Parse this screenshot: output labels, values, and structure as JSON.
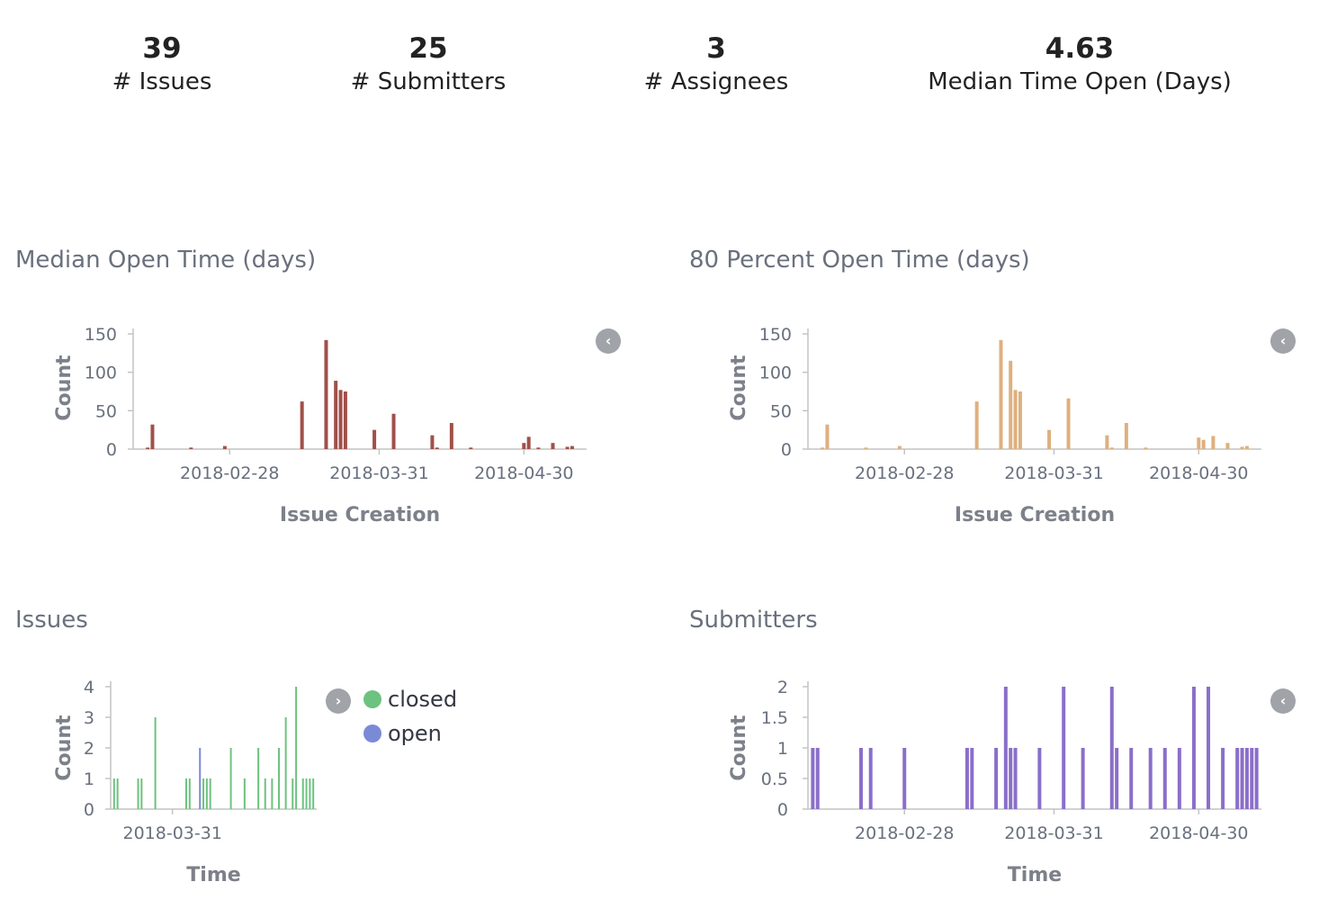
{
  "metrics": [
    {
      "value": "39",
      "label": "# Issues"
    },
    {
      "value": "25",
      "label": "# Submitters"
    },
    {
      "value": "3",
      "label": "# Assignees"
    },
    {
      "value": "4.63",
      "label": "Median Time Open (Days)"
    }
  ],
  "panels": {
    "median": {
      "title": "Median Open Time (days)"
    },
    "p80": {
      "title": "80 Percent Open Time (days)"
    },
    "issues": {
      "title": "Issues"
    },
    "submitters": {
      "title": "Submitters"
    }
  },
  "legend": {
    "issues": [
      {
        "label": "closed",
        "color": "#6dc27f"
      },
      {
        "label": "open",
        "color": "#7b8ad6"
      }
    ]
  },
  "colors": {
    "median": "#a0504a",
    "p80": "#deb07e",
    "closed": "#6dc27f",
    "open": "#7b8ad6",
    "submitters": "#8a6fc9"
  },
  "icons": {
    "legend_toggle": "chevron-left-icon",
    "legend_toggle_right": "chevron-right-icon"
  },
  "chart_data": [
    {
      "id": "median",
      "type": "bar",
      "title": "Median Open Time (days)",
      "xlabel": "Issue Creation",
      "ylabel": "Count",
      "xlim": [
        "2018-02-08",
        "2018-05-13"
      ],
      "ylim": [
        0,
        150
      ],
      "yticks": [
        0,
        50,
        100,
        150
      ],
      "xticks": [
        "2018-02-28",
        "2018-03-31",
        "2018-04-30"
      ],
      "x": [
        "2018-02-11",
        "2018-02-12",
        "2018-02-20",
        "2018-02-27",
        "2018-03-15",
        "2018-03-20",
        "2018-03-22",
        "2018-03-23",
        "2018-03-24",
        "2018-03-30",
        "2018-04-03",
        "2018-04-11",
        "2018-04-12",
        "2018-04-15",
        "2018-04-19",
        "2018-04-30",
        "2018-05-01",
        "2018-05-03",
        "2018-05-06",
        "2018-05-09",
        "2018-05-10"
      ],
      "values": [
        2,
        32,
        2,
        4,
        62,
        142,
        89,
        77,
        75,
        25,
        46,
        18,
        2,
        34,
        2,
        8,
        16,
        2,
        8,
        3,
        4
      ]
    },
    {
      "id": "p80",
      "type": "bar",
      "title": "80 Percent Open Time (days)",
      "xlabel": "Issue Creation",
      "ylabel": "Count",
      "xlim": [
        "2018-02-08",
        "2018-05-13"
      ],
      "ylim": [
        0,
        150
      ],
      "yticks": [
        0,
        50,
        100,
        150
      ],
      "xticks": [
        "2018-02-28",
        "2018-03-31",
        "2018-04-30"
      ],
      "x": [
        "2018-02-11",
        "2018-02-12",
        "2018-02-20",
        "2018-02-27",
        "2018-03-15",
        "2018-03-20",
        "2018-03-22",
        "2018-03-23",
        "2018-03-24",
        "2018-03-30",
        "2018-04-03",
        "2018-04-11",
        "2018-04-12",
        "2018-04-15",
        "2018-04-19",
        "2018-04-30",
        "2018-05-01",
        "2018-05-03",
        "2018-05-06",
        "2018-05-09",
        "2018-05-10"
      ],
      "values": [
        2,
        32,
        2,
        4,
        62,
        142,
        115,
        77,
        75,
        25,
        66,
        18,
        2,
        34,
        2,
        15,
        12,
        17,
        8,
        3,
        4
      ]
    },
    {
      "id": "issues",
      "type": "bar",
      "title": "Issues",
      "xlabel": "Time",
      "ylabel": "Count",
      "xlim": [
        "2018-03-13",
        "2018-05-12"
      ],
      "ylim": [
        0,
        4
      ],
      "yticks": [
        0,
        1,
        2,
        3,
        4
      ],
      "xticks": [
        "2018-03-31"
      ],
      "series": [
        {
          "name": "closed",
          "x": [
            "2018-03-14",
            "2018-03-15",
            "2018-03-21",
            "2018-03-22",
            "2018-03-26",
            "2018-04-04",
            "2018-04-05",
            "2018-04-09",
            "2018-04-10",
            "2018-04-11",
            "2018-04-17",
            "2018-04-21",
            "2018-04-25",
            "2018-04-27",
            "2018-04-29",
            "2018-05-01",
            "2018-05-03",
            "2018-05-05",
            "2018-05-06",
            "2018-05-08",
            "2018-05-09",
            "2018-05-10",
            "2018-05-11"
          ],
          "values": [
            1,
            1,
            1,
            1,
            3,
            1,
            1,
            1,
            1,
            1,
            2,
            1,
            2,
            1,
            1,
            2,
            3,
            1,
            4,
            1,
            1,
            1,
            1
          ]
        },
        {
          "name": "open",
          "x": [
            "2018-04-08"
          ],
          "values": [
            2
          ]
        }
      ]
    },
    {
      "id": "submitters",
      "type": "bar",
      "title": "Submitters",
      "xlabel": "Time",
      "ylabel": "Count",
      "xlim": [
        "2018-02-08",
        "2018-05-13"
      ],
      "ylim": [
        0,
        2
      ],
      "yticks": [
        0,
        0.5,
        1,
        1.5,
        2
      ],
      "xticks": [
        "2018-02-28",
        "2018-03-31",
        "2018-04-30"
      ],
      "x": [
        "2018-02-09",
        "2018-02-10",
        "2018-02-19",
        "2018-02-21",
        "2018-02-28",
        "2018-03-13",
        "2018-03-14",
        "2018-03-19",
        "2018-03-21",
        "2018-03-22",
        "2018-03-23",
        "2018-03-28",
        "2018-04-02",
        "2018-04-06",
        "2018-04-12",
        "2018-04-13",
        "2018-04-16",
        "2018-04-20",
        "2018-04-23",
        "2018-04-26",
        "2018-04-29",
        "2018-05-02",
        "2018-05-05",
        "2018-05-08",
        "2018-05-09",
        "2018-05-10",
        "2018-05-11",
        "2018-05-12"
      ],
      "values": [
        1,
        1,
        1,
        1,
        1,
        1,
        1,
        1,
        2,
        1,
        1,
        1,
        2,
        1,
        2,
        1,
        1,
        1,
        1,
        1,
        2,
        2,
        1,
        1,
        1,
        1,
        1,
        1
      ]
    }
  ]
}
